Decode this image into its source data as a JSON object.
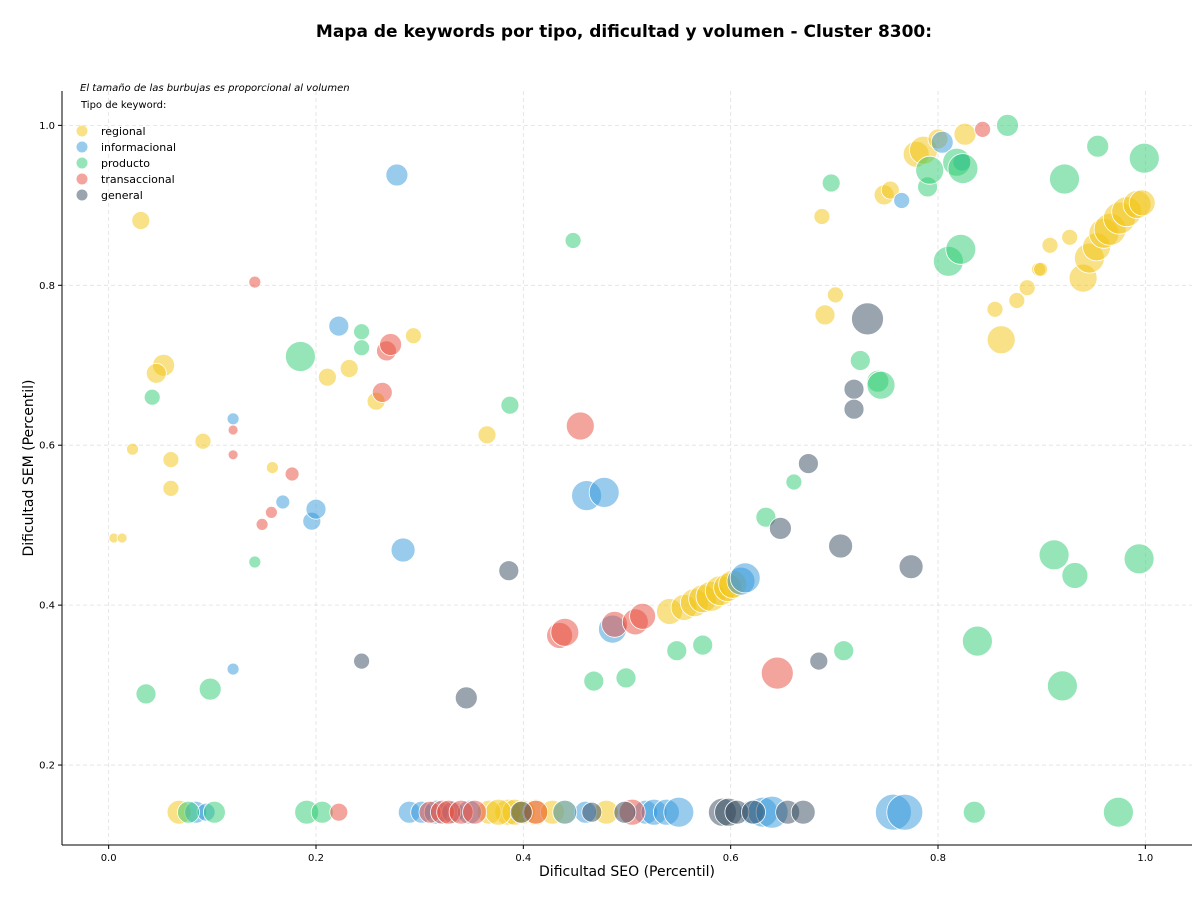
{
  "chart_data": {
    "type": "scatter",
    "title": "Mapa de keywords por tipo, dificultad y volumen - Cluster 8300:",
    "xlabel": "Dificultad SEO (Percentil)",
    "ylabel": "Dificultad SEM (Percentil)",
    "xlim": [
      -0.045,
      1.045
    ],
    "ylim": [
      0.1,
      1.043
    ],
    "xticks": [
      0.0,
      0.2,
      0.4,
      0.6,
      0.8,
      1.0
    ],
    "yticks": [
      0.2,
      0.4,
      0.6,
      0.8,
      1.0
    ],
    "grid": true,
    "note": "El tamaño de las burbujas es proporcional al volumen",
    "legend_title": "Tipo de keyword:",
    "legend_position": "top-left",
    "series": [
      {
        "name": "regional",
        "color": "#f1c40f",
        "points": [
          [
            0.031,
            0.881,
            9
          ],
          [
            0.005,
            0.484,
            5
          ],
          [
            0.013,
            0.484,
            5
          ],
          [
            0.023,
            0.595,
            6
          ],
          [
            0.053,
            0.7,
            11
          ],
          [
            0.046,
            0.69,
            10
          ],
          [
            0.06,
            0.582,
            8
          ],
          [
            0.06,
            0.546,
            8
          ],
          [
            0.091,
            0.605,
            8
          ],
          [
            0.158,
            0.572,
            6
          ],
          [
            0.211,
            0.685,
            9
          ],
          [
            0.232,
            0.696,
            9
          ],
          [
            0.258,
            0.655,
            9
          ],
          [
            0.294,
            0.737,
            8
          ],
          [
            0.365,
            0.613,
            9
          ],
          [
            0.688,
            0.886,
            8
          ],
          [
            0.691,
            0.763,
            10
          ],
          [
            0.701,
            0.788,
            8
          ],
          [
            0.748,
            0.913,
            10
          ],
          [
            0.754,
            0.919,
            9
          ],
          [
            0.779,
            0.964,
            13
          ],
          [
            0.786,
            0.969,
            14
          ],
          [
            0.8,
            0.983,
            10
          ],
          [
            0.826,
            0.989,
            11
          ],
          [
            0.855,
            0.77,
            8
          ],
          [
            0.861,
            0.732,
            14
          ],
          [
            0.876,
            0.781,
            8
          ],
          [
            0.886,
            0.797,
            8
          ],
          [
            0.897,
            0.82,
            7
          ],
          [
            0.899,
            0.82,
            7
          ],
          [
            0.908,
            0.85,
            8
          ],
          [
            0.927,
            0.86,
            8
          ],
          [
            0.94,
            0.809,
            14
          ],
          [
            0.946,
            0.834,
            15
          ],
          [
            0.953,
            0.848,
            14
          ],
          [
            0.96,
            0.865,
            15
          ],
          [
            0.966,
            0.87,
            16
          ],
          [
            0.975,
            0.884,
            16
          ],
          [
            0.982,
            0.892,
            15
          ],
          [
            0.992,
            0.901,
            14
          ],
          [
            0.997,
            0.903,
            13
          ],
          [
            0.541,
            0.392,
            13
          ],
          [
            0.555,
            0.397,
            13
          ],
          [
            0.565,
            0.403,
            14
          ],
          [
            0.573,
            0.408,
            14
          ],
          [
            0.581,
            0.411,
            15
          ],
          [
            0.59,
            0.418,
            15
          ],
          [
            0.597,
            0.422,
            14
          ],
          [
            0.602,
            0.426,
            14
          ],
          [
            0.068,
            0.141,
            12
          ],
          [
            0.385,
            0.141,
            13
          ],
          [
            0.392,
            0.141,
            13
          ],
          [
            0.4,
            0.141,
            12
          ],
          [
            0.412,
            0.141,
            13
          ],
          [
            0.428,
            0.141,
            12
          ],
          [
            0.44,
            0.141,
            12
          ],
          [
            0.48,
            0.141,
            12
          ],
          [
            0.367,
            0.141,
            12
          ],
          [
            0.376,
            0.141,
            13
          ]
        ]
      },
      {
        "name": "informacional",
        "color": "#3498db",
        "points": [
          [
            0.278,
            0.938,
            11
          ],
          [
            0.222,
            0.749,
            10
          ],
          [
            0.12,
            0.633,
            6
          ],
          [
            0.12,
            0.32,
            6
          ],
          [
            0.168,
            0.529,
            7
          ],
          [
            0.196,
            0.505,
            9
          ],
          [
            0.2,
            0.52,
            10
          ],
          [
            0.284,
            0.469,
            12
          ],
          [
            0.461,
            0.537,
            15
          ],
          [
            0.478,
            0.541,
            15
          ],
          [
            0.486,
            0.37,
            14
          ],
          [
            0.61,
            0.43,
            14
          ],
          [
            0.614,
            0.434,
            15
          ],
          [
            0.765,
            0.906,
            8
          ],
          [
            0.804,
            0.979,
            11
          ],
          [
            0.823,
            0.954,
            9
          ],
          [
            0.084,
            0.141,
            11
          ],
          [
            0.29,
            0.141,
            11
          ],
          [
            0.302,
            0.141,
            11
          ],
          [
            0.316,
            0.141,
            12
          ],
          [
            0.332,
            0.141,
            11
          ],
          [
            0.348,
            0.141,
            12
          ],
          [
            0.46,
            0.141,
            11
          ],
          [
            0.518,
            0.141,
            12
          ],
          [
            0.526,
            0.141,
            13
          ],
          [
            0.538,
            0.141,
            13
          ],
          [
            0.55,
            0.141,
            15
          ],
          [
            0.62,
            0.141,
            12
          ],
          [
            0.631,
            0.141,
            15
          ],
          [
            0.64,
            0.141,
            16
          ],
          [
            0.757,
            0.141,
            18
          ],
          [
            0.768,
            0.141,
            18
          ],
          [
            0.094,
            0.141,
            9
          ],
          [
            0.44,
            0.141,
            12
          ]
        ]
      },
      {
        "name": "producto",
        "color": "#2ecc71",
        "points": [
          [
            0.042,
            0.66,
            8
          ],
          [
            0.036,
            0.289,
            10
          ],
          [
            0.098,
            0.295,
            11
          ],
          [
            0.141,
            0.454,
            6
          ],
          [
            0.185,
            0.711,
            15
          ],
          [
            0.244,
            0.742,
            8
          ],
          [
            0.244,
            0.722,
            8
          ],
          [
            0.387,
            0.65,
            9
          ],
          [
            0.448,
            0.856,
            8
          ],
          [
            0.468,
            0.305,
            10
          ],
          [
            0.499,
            0.309,
            10
          ],
          [
            0.548,
            0.343,
            10
          ],
          [
            0.573,
            0.35,
            10
          ],
          [
            0.634,
            0.51,
            10
          ],
          [
            0.661,
            0.554,
            8
          ],
          [
            0.697,
            0.928,
            9
          ],
          [
            0.709,
            0.343,
            10
          ],
          [
            0.725,
            0.706,
            10
          ],
          [
            0.742,
            0.68,
            11
          ],
          [
            0.745,
            0.675,
            14
          ],
          [
            0.79,
            0.923,
            10
          ],
          [
            0.792,
            0.944,
            14
          ],
          [
            0.81,
            0.83,
            15
          ],
          [
            0.818,
            0.954,
            14
          ],
          [
            0.824,
            0.946,
            15
          ],
          [
            0.822,
            0.845,
            15
          ],
          [
            0.838,
            0.355,
            15
          ],
          [
            0.867,
            1.0,
            11
          ],
          [
            0.912,
            0.463,
            15
          ],
          [
            0.92,
            0.299,
            15
          ],
          [
            0.922,
            0.933,
            15
          ],
          [
            0.932,
            0.437,
            13
          ],
          [
            0.954,
            0.974,
            11
          ],
          [
            0.994,
            0.458,
            15
          ],
          [
            0.999,
            0.959,
            15
          ],
          [
            0.102,
            0.141,
            11
          ],
          [
            0.191,
            0.141,
            12
          ],
          [
            0.206,
            0.141,
            11
          ],
          [
            0.835,
            0.141,
            11
          ],
          [
            0.974,
            0.141,
            15
          ],
          [
            0.077,
            0.141,
            11
          ]
        ]
      },
      {
        "name": "transaccional",
        "color": "#e74c3c",
        "points": [
          [
            0.141,
            0.804,
            6
          ],
          [
            0.12,
            0.619,
            5
          ],
          [
            0.12,
            0.588,
            5
          ],
          [
            0.148,
            0.501,
            6
          ],
          [
            0.157,
            0.516,
            6
          ],
          [
            0.177,
            0.564,
            7
          ],
          [
            0.264,
            0.666,
            10
          ],
          [
            0.268,
            0.718,
            10
          ],
          [
            0.272,
            0.726,
            11
          ],
          [
            0.435,
            0.362,
            13
          ],
          [
            0.44,
            0.366,
            14
          ],
          [
            0.455,
            0.624,
            14
          ],
          [
            0.488,
            0.376,
            13
          ],
          [
            0.508,
            0.379,
            13
          ],
          [
            0.515,
            0.386,
            13
          ],
          [
            0.645,
            0.315,
            16
          ],
          [
            0.843,
            0.995,
            8
          ],
          [
            0.222,
            0.141,
            9
          ],
          [
            0.31,
            0.141,
            11
          ],
          [
            0.322,
            0.141,
            12
          ],
          [
            0.328,
            0.141,
            12
          ],
          [
            0.34,
            0.141,
            12
          ],
          [
            0.353,
            0.141,
            12
          ],
          [
            0.412,
            0.141,
            12
          ],
          [
            0.505,
            0.141,
            13
          ]
        ]
      },
      {
        "name": "general",
        "color": "#34495e",
        "points": [
          [
            0.244,
            0.33,
            8
          ],
          [
            0.345,
            0.284,
            11
          ],
          [
            0.386,
            0.443,
            10
          ],
          [
            0.648,
            0.496,
            11
          ],
          [
            0.675,
            0.577,
            10
          ],
          [
            0.685,
            0.33,
            9
          ],
          [
            0.706,
            0.474,
            12
          ],
          [
            0.719,
            0.67,
            10
          ],
          [
            0.719,
            0.645,
            10
          ],
          [
            0.732,
            0.758,
            16
          ],
          [
            0.774,
            0.448,
            12
          ],
          [
            0.398,
            0.141,
            11
          ],
          [
            0.466,
            0.141,
            10
          ],
          [
            0.498,
            0.141,
            11
          ],
          [
            0.592,
            0.141,
            14
          ],
          [
            0.598,
            0.141,
            14
          ],
          [
            0.606,
            0.141,
            12
          ],
          [
            0.622,
            0.141,
            12
          ],
          [
            0.655,
            0.141,
            12
          ],
          [
            0.67,
            0.141,
            12
          ]
        ]
      }
    ]
  }
}
